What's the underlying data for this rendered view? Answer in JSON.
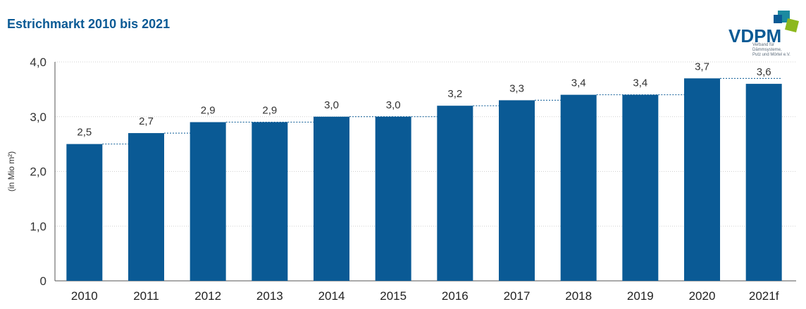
{
  "title": "Estrichmarkt 2010 bis 2021",
  "logo": {
    "name": "VDPM",
    "subtitle_line1": "Verband für Dämmsysteme,",
    "subtitle_line2": "Putz und Mörtel e.V."
  },
  "colors": {
    "bar": "#0a5a95",
    "title": "#0a5a95",
    "grid": "#d0d0d0",
    "logo_dark": "#0a5a95",
    "logo_teal": "#1b8aa0",
    "logo_green": "#8db81e"
  },
  "chart_data": {
    "type": "bar",
    "title": "Estrichmarkt 2010 bis 2021",
    "xlabel": "",
    "ylabel": "(in Mio m²)",
    "ylim": [
      0,
      4
    ],
    "yticks": [
      "0",
      "1,0",
      "2,0",
      "3,0",
      "4,0"
    ],
    "ytick_values": [
      0,
      1,
      2,
      3,
      4
    ],
    "grid": true,
    "categories": [
      "2010",
      "2011",
      "2012",
      "2013",
      "2014",
      "2015",
      "2016",
      "2017",
      "2018",
      "2019",
      "2020",
      "2021f"
    ],
    "values": [
      2.5,
      2.7,
      2.9,
      2.9,
      3.0,
      3.0,
      3.2,
      3.3,
      3.4,
      3.4,
      3.7,
      3.6
    ],
    "value_labels": [
      "2,5",
      "2,7",
      "2,9",
      "2,9",
      "3,0",
      "3,0",
      "3,2",
      "3,3",
      "3,4",
      "3,4",
      "3,7",
      "3,6"
    ]
  }
}
